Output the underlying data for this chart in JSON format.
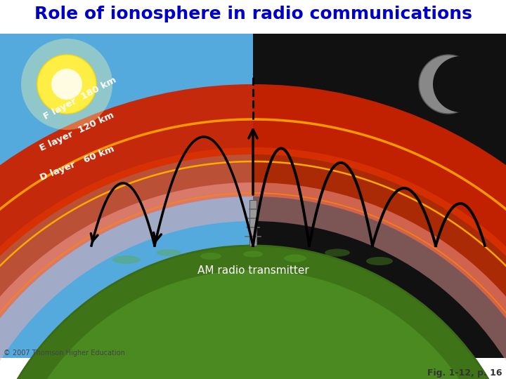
{
  "title": "Role of ionosphere in radio communications",
  "title_color": "#0000CC",
  "title_fontsize": 18,
  "fig_width": 7.2,
  "fig_height": 5.4,
  "dpi": 100,
  "day_sky_color": "#55AADD",
  "night_sky_color": "#111111",
  "earth_color": "#4a8a20",
  "earth_color_dark": "#3a6a15",
  "iono_red": "#CC2200",
  "iono_orange": "#FF8800",
  "iono_pink": "#FFBBBB",
  "layer_labels": [
    "F layer  180 km",
    "E layer  120 km",
    "D layer   60 km"
  ],
  "am_label": "AM radio transmitter",
  "copyright": "© 2007 Thomson Higher Education",
  "fig_note": "Fig. 1-12, p. 16",
  "sun_color": "#FFEE44",
  "moon_color": "#888888",
  "arrow_color": "#000000"
}
